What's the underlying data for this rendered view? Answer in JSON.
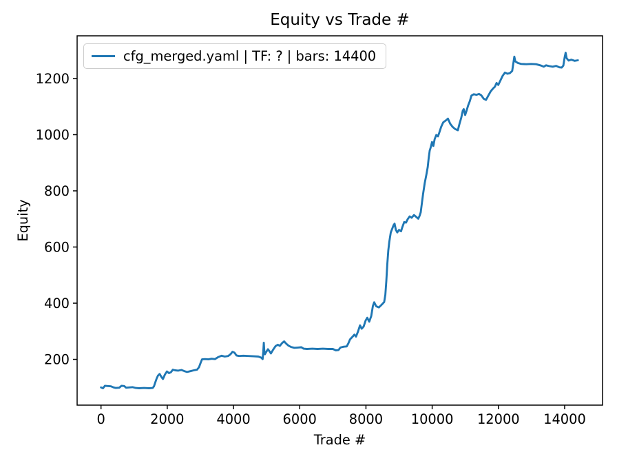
{
  "figure": {
    "title": "Equity vs Trade #",
    "xlabel": "Trade #",
    "ylabel": "Equity",
    "background_color": "#ffffff",
    "spine_color": "#000000",
    "tick_color": "#000000",
    "text_color": "#000000"
  },
  "legend": {
    "label": "cfg_merged.yaml | TF: ? | bars: 14400",
    "line_color": "#1f77b4",
    "border_color": "#cccccc",
    "position": "upper left"
  },
  "chart_data": {
    "type": "line",
    "title": "Equity vs Trade #",
    "xlabel": "Trade #",
    "ylabel": "Equity",
    "grid": false,
    "legend_position": "upper left",
    "x_ticks": [
      0,
      2000,
      4000,
      6000,
      8000,
      10000,
      12000,
      14000
    ],
    "y_ticks": [
      200,
      400,
      600,
      800,
      1000,
      1200
    ],
    "xlim": [
      -721,
      15144
    ],
    "ylim": [
      37,
      1352
    ],
    "series": [
      {
        "name": "cfg_merged.yaml | TF: ? | bars: 14400",
        "color": "#1f77b4",
        "line_width": 2.9,
        "points": [
          [
            0,
            100
          ],
          [
            60,
            97
          ],
          [
            120,
            106
          ],
          [
            200,
            105
          ],
          [
            300,
            104
          ],
          [
            380,
            100
          ],
          [
            450,
            98
          ],
          [
            550,
            99
          ],
          [
            620,
            106
          ],
          [
            700,
            105
          ],
          [
            760,
            99
          ],
          [
            850,
            100
          ],
          [
            950,
            101
          ],
          [
            1050,
            98
          ],
          [
            1150,
            97
          ],
          [
            1300,
            98
          ],
          [
            1450,
            97
          ],
          [
            1560,
            98
          ],
          [
            1600,
            104
          ],
          [
            1640,
            118
          ],
          [
            1680,
            132
          ],
          [
            1720,
            142
          ],
          [
            1770,
            148
          ],
          [
            1820,
            138
          ],
          [
            1870,
            130
          ],
          [
            1930,
            146
          ],
          [
            1990,
            157
          ],
          [
            2050,
            151
          ],
          [
            2110,
            154
          ],
          [
            2170,
            163
          ],
          [
            2240,
            161
          ],
          [
            2330,
            160
          ],
          [
            2430,
            162
          ],
          [
            2520,
            158
          ],
          [
            2600,
            155
          ],
          [
            2700,
            158
          ],
          [
            2800,
            161
          ],
          [
            2900,
            163
          ],
          [
            2960,
            172
          ],
          [
            3010,
            188
          ],
          [
            3050,
            200
          ],
          [
            3140,
            201
          ],
          [
            3240,
            200
          ],
          [
            3340,
            202
          ],
          [
            3440,
            201
          ],
          [
            3540,
            208
          ],
          [
            3640,
            213
          ],
          [
            3740,
            210
          ],
          [
            3840,
            212
          ],
          [
            3910,
            218
          ],
          [
            3970,
            227
          ],
          [
            4030,
            224
          ],
          [
            4090,
            214
          ],
          [
            4170,
            212
          ],
          [
            4300,
            213
          ],
          [
            4450,
            212
          ],
          [
            4600,
            211
          ],
          [
            4750,
            210
          ],
          [
            4840,
            206
          ],
          [
            4880,
            201
          ],
          [
            4900,
            226
          ],
          [
            4915,
            259
          ],
          [
            4930,
            230
          ],
          [
            4950,
            218
          ],
          [
            4990,
            227
          ],
          [
            5040,
            236
          ],
          [
            5090,
            228
          ],
          [
            5130,
            221
          ],
          [
            5200,
            235
          ],
          [
            5270,
            247
          ],
          [
            5340,
            252
          ],
          [
            5400,
            248
          ],
          [
            5470,
            258
          ],
          [
            5530,
            264
          ],
          [
            5590,
            256
          ],
          [
            5660,
            249
          ],
          [
            5740,
            244
          ],
          [
            5840,
            241
          ],
          [
            5950,
            242
          ],
          [
            6050,
            243
          ],
          [
            6120,
            238
          ],
          [
            6220,
            237
          ],
          [
            6380,
            238
          ],
          [
            6540,
            237
          ],
          [
            6700,
            238
          ],
          [
            6860,
            237
          ],
          [
            7000,
            237
          ],
          [
            7090,
            232
          ],
          [
            7170,
            233
          ],
          [
            7230,
            242
          ],
          [
            7330,
            245
          ],
          [
            7420,
            246
          ],
          [
            7470,
            257
          ],
          [
            7520,
            271
          ],
          [
            7590,
            280
          ],
          [
            7650,
            288
          ],
          [
            7700,
            281
          ],
          [
            7760,
            299
          ],
          [
            7820,
            321
          ],
          [
            7870,
            309
          ],
          [
            7930,
            317
          ],
          [
            7990,
            338
          ],
          [
            8040,
            348
          ],
          [
            8100,
            334
          ],
          [
            8160,
            354
          ],
          [
            8210,
            390
          ],
          [
            8250,
            403
          ],
          [
            8310,
            389
          ],
          [
            8390,
            385
          ],
          [
            8470,
            394
          ],
          [
            8550,
            404
          ],
          [
            8585,
            430
          ],
          [
            8615,
            478
          ],
          [
            8645,
            538
          ],
          [
            8675,
            588
          ],
          [
            8705,
            618
          ],
          [
            8750,
            652
          ],
          [
            8795,
            666
          ],
          [
            8835,
            678
          ],
          [
            8865,
            683
          ],
          [
            8905,
            661
          ],
          [
            8945,
            652
          ],
          [
            9000,
            661
          ],
          [
            9060,
            656
          ],
          [
            9100,
            671
          ],
          [
            9155,
            689
          ],
          [
            9210,
            687
          ],
          [
            9260,
            699
          ],
          [
            9320,
            709
          ],
          [
            9380,
            704
          ],
          [
            9450,
            714
          ],
          [
            9520,
            707
          ],
          [
            9580,
            701
          ],
          [
            9620,
            711
          ],
          [
            9655,
            724
          ],
          [
            9690,
            757
          ],
          [
            9725,
            789
          ],
          [
            9775,
            828
          ],
          [
            9825,
            858
          ],
          [
            9865,
            884
          ],
          [
            9895,
            918
          ],
          [
            9925,
            943
          ],
          [
            9955,
            954
          ],
          [
            9995,
            974
          ],
          [
            10035,
            960
          ],
          [
            10075,
            984
          ],
          [
            10125,
            999
          ],
          [
            10175,
            994
          ],
          [
            10215,
            1007
          ],
          [
            10275,
            1029
          ],
          [
            10335,
            1044
          ],
          [
            10415,
            1051
          ],
          [
            10475,
            1057
          ],
          [
            10545,
            1039
          ],
          [
            10615,
            1028
          ],
          [
            10695,
            1020
          ],
          [
            10775,
            1016
          ],
          [
            10825,
            1039
          ],
          [
            10875,
            1059
          ],
          [
            10925,
            1086
          ],
          [
            10955,
            1091
          ],
          [
            10995,
            1070
          ],
          [
            11035,
            1084
          ],
          [
            11085,
            1104
          ],
          [
            11135,
            1119
          ],
          [
            11185,
            1139
          ],
          [
            11255,
            1144
          ],
          [
            11335,
            1142
          ],
          [
            11415,
            1145
          ],
          [
            11485,
            1140
          ],
          [
            11555,
            1128
          ],
          [
            11625,
            1124
          ],
          [
            11695,
            1139
          ],
          [
            11765,
            1154
          ],
          [
            11835,
            1164
          ],
          [
            11895,
            1171
          ],
          [
            11945,
            1184
          ],
          [
            11995,
            1177
          ],
          [
            12065,
            1194
          ],
          [
            12125,
            1209
          ],
          [
            12195,
            1221
          ],
          [
            12275,
            1217
          ],
          [
            12345,
            1219
          ],
          [
            12415,
            1227
          ],
          [
            12455,
            1258
          ],
          [
            12480,
            1278
          ],
          [
            12510,
            1261
          ],
          [
            12590,
            1255
          ],
          [
            12690,
            1252
          ],
          [
            12840,
            1251
          ],
          [
            12990,
            1252
          ],
          [
            13140,
            1251
          ],
          [
            13290,
            1246
          ],
          [
            13370,
            1242
          ],
          [
            13440,
            1247
          ],
          [
            13540,
            1244
          ],
          [
            13640,
            1242
          ],
          [
            13740,
            1245
          ],
          [
            13840,
            1240
          ],
          [
            13910,
            1239
          ],
          [
            13960,
            1246
          ],
          [
            14000,
            1276
          ],
          [
            14030,
            1292
          ],
          [
            14060,
            1272
          ],
          [
            14120,
            1264
          ],
          [
            14200,
            1267
          ],
          [
            14300,
            1263
          ],
          [
            14400,
            1265
          ]
        ]
      }
    ]
  }
}
